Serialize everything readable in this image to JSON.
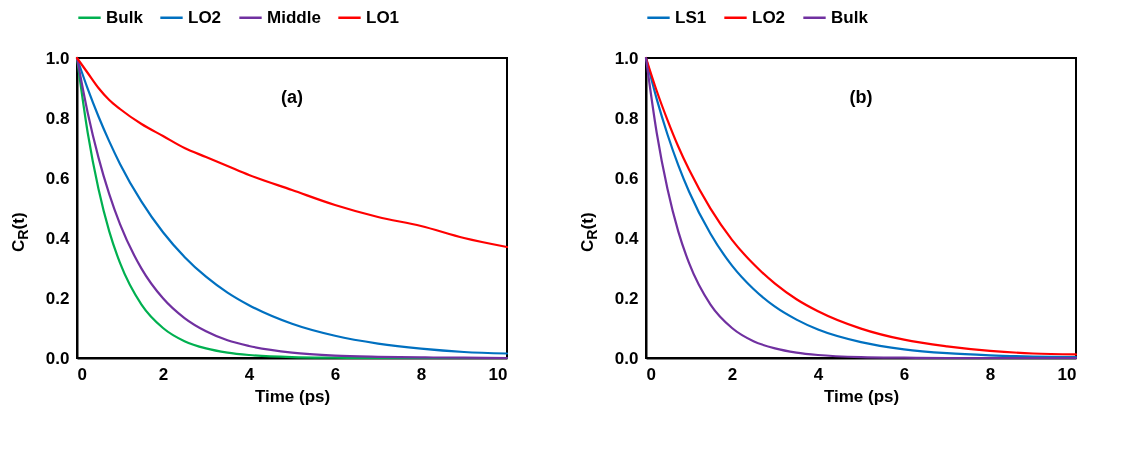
{
  "chart_data": [
    {
      "type": "line",
      "xlabel": "Time (ps)",
      "ylabel": "C$_{R}$(t)",
      "annotations": [
        "(a)"
      ],
      "xlim": [
        0,
        10
      ],
      "xticks": [
        0,
        2,
        4,
        6,
        8,
        10
      ],
      "ylim": [
        0,
        1
      ],
      "yticks": [
        {
          "value": 0,
          "label": "0.0"
        },
        {
          "value": 0.2,
          "label": "0.2"
        },
        {
          "value": 0.4,
          "label": "0.4"
        },
        {
          "value": 0.6,
          "label": "0.6"
        },
        {
          "value": 0.8,
          "label": "0.8"
        },
        {
          "value": 1,
          "label": "1.0"
        }
      ],
      "grid": false,
      "legend": "top",
      "marker": "none",
      "line_style": "solid",
      "x": [
        0,
        0.25,
        0.5,
        0.75,
        1,
        1.5,
        2,
        2.5,
        3,
        3.5,
        4,
        5,
        6,
        7,
        8,
        9,
        10
      ],
      "series": [
        {
          "name": "Bulk",
          "color": "#00b050",
          "values": [
            1,
            0.75,
            0.563,
            0.422,
            0.317,
            0.178,
            0.1,
            0.056,
            0.032,
            0.018,
            0.01,
            0.003,
            0.001,
            0,
            0,
            0,
            0
          ]
        },
        {
          "name": "LO2",
          "color": "#0070c0",
          "values": [
            1,
            0.897,
            0.805,
            0.722,
            0.647,
            0.521,
            0.419,
            0.337,
            0.271,
            0.218,
            0.176,
            0.114,
            0.074,
            0.048,
            0.031,
            0.02,
            0.015
          ]
        },
        {
          "name": "Middle",
          "color": "#7030a0",
          "values": [
            1,
            0.817,
            0.668,
            0.546,
            0.446,
            0.298,
            0.199,
            0.133,
            0.089,
            0.059,
            0.04,
            0.018,
            0.008,
            0.004,
            0.002,
            0.001,
            0
          ]
        },
        {
          "name": "LO1",
          "color": "#ff0000",
          "values": [
            1,
            0.95,
            0.9,
            0.86,
            0.83,
            0.78,
            0.74,
            0.7,
            0.67,
            0.64,
            0.61,
            0.56,
            0.51,
            0.47,
            0.44,
            0.4,
            0.37
          ]
        }
      ]
    },
    {
      "type": "line",
      "xlabel": "Time (ps)",
      "ylabel": "C$_{R}$(t)",
      "annotations": [
        "(b)"
      ],
      "xlim": [
        0,
        10
      ],
      "xticks": [
        0,
        2,
        4,
        6,
        8,
        10
      ],
      "ylim": [
        0,
        1
      ],
      "yticks": [
        {
          "value": 0,
          "label": "0.0"
        },
        {
          "value": 0.2,
          "label": "0.2"
        },
        {
          "value": 0.4,
          "label": "0.4"
        },
        {
          "value": 0.6,
          "label": "0.6"
        },
        {
          "value": 0.8,
          "label": "0.8"
        },
        {
          "value": 1,
          "label": "1.0"
        }
      ],
      "grid": false,
      "legend": "top",
      "marker": "none",
      "line_style": "solid",
      "x": [
        0,
        0.25,
        0.5,
        0.75,
        1,
        1.5,
        2,
        2.5,
        3,
        3.5,
        4,
        5,
        6,
        7,
        8,
        9,
        10
      ],
      "series": [
        {
          "name": "LS1",
          "color": "#0070c0",
          "values": [
            1,
            0.863,
            0.745,
            0.643,
            0.555,
            0.414,
            0.308,
            0.23,
            0.171,
            0.128,
            0.095,
            0.053,
            0.029,
            0.016,
            0.009,
            0.005,
            0.003
          ]
        },
        {
          "name": "LO2",
          "color": "#ff0000",
          "values": [
            1,
            0.89,
            0.793,
            0.705,
            0.628,
            0.498,
            0.394,
            0.313,
            0.248,
            0.196,
            0.156,
            0.098,
            0.061,
            0.039,
            0.024,
            0.015,
            0.012
          ]
        },
        {
          "name": "Bulk",
          "color": "#7030a0",
          "values": [
            1,
            0.75,
            0.563,
            0.422,
            0.317,
            0.178,
            0.1,
            0.056,
            0.032,
            0.018,
            0.01,
            0.003,
            0.001,
            0,
            0,
            0,
            0
          ]
        }
      ]
    }
  ]
}
